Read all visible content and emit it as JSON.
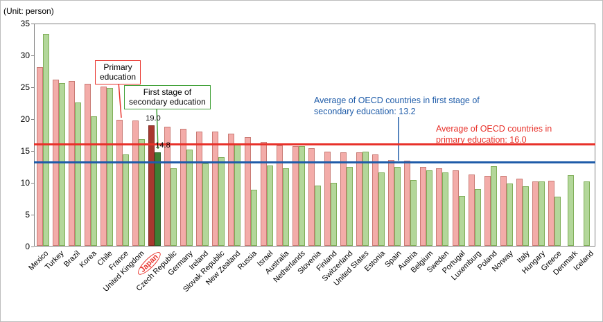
{
  "annotations": {
    "unit": "(Unit: person)",
    "primary_box": {
      "line1": "Primary",
      "line2": "education"
    },
    "secondary_box": {
      "line1": "First stage of",
      "line2": "secondary education"
    },
    "avg_secondary": {
      "line1": "Average of OECD countries in first stage of",
      "line2": "secondary education: 13.2"
    },
    "avg_primary": {
      "line1": "Average of OECD countries in",
      "line2": "primary education: 16.0"
    },
    "japan_primary": "19.0",
    "japan_secondary": "14.8"
  },
  "colors": {
    "primary_bar": "#F3ACA9",
    "secondary_bar": "#B3D79A",
    "japan_primary_bar": "#A8382F",
    "japan_secondary_bar": "#3E7F35",
    "primary_avg_line": "#E8312A",
    "secondary_avg_line": "#1F5CA9"
  },
  "chart_data": {
    "type": "bar",
    "title": "",
    "unit": "person",
    "ylabel": "(Unit: person)",
    "ylim": [
      0,
      35
    ],
    "yticks": [
      0,
      5,
      10,
      15,
      20,
      25,
      30,
      35
    ],
    "grid": false,
    "highlight_category": "Japan",
    "categories": [
      "Mexico",
      "Turkey",
      "Brazil",
      "Korea",
      "Chile",
      "France",
      "United Kingdom",
      "Japan",
      "Czech Republic",
      "Germany",
      "Ireland",
      "Slovak Republic",
      "New Zealand",
      "Russia",
      "Israel",
      "Australia",
      "Netherlands",
      "Slovenia",
      "Finland",
      "Switzerland",
      "United States",
      "Estonia",
      "Spain",
      "Austria",
      "Belgium",
      "Sweden",
      "Portugal",
      "Luxemburg",
      "Poland",
      "Norway",
      "Italy",
      "Hungary",
      "Greece",
      "Denmark",
      "Iceland"
    ],
    "series": [
      {
        "name": "Primary education",
        "values": [
          28.2,
          26.3,
          26.0,
          25.6,
          25.2,
          19.9,
          19.8,
          19.0,
          18.8,
          18.5,
          18.1,
          18.0,
          17.7,
          17.2,
          16.4,
          15.9,
          15.7,
          15.4,
          14.9,
          14.8,
          14.8,
          14.4,
          13.6,
          13.5,
          12.5,
          12.2,
          11.9,
          11.3,
          11.0,
          11.0,
          10.6,
          10.2,
          10.3,
          null,
          null
        ]
      },
      {
        "name": "First stage of secondary education",
        "values": [
          33.5,
          25.7,
          22.6,
          20.5,
          24.9,
          14.4,
          16.9,
          14.8,
          12.3,
          15.2,
          13.0,
          14.0,
          16.2,
          8.9,
          12.7,
          12.3,
          15.8,
          9.5,
          10.0,
          12.5,
          14.9,
          11.6,
          12.5,
          10.4,
          11.9,
          11.6,
          7.9,
          9.0,
          12.6,
          9.9,
          9.4,
          10.2,
          7.8,
          11.2,
          10.2
        ]
      }
    ],
    "averages": {
      "primary": 16.0,
      "secondary": 13.2
    },
    "data_labels": {
      "Japan": {
        "primary": "19.0",
        "secondary": "14.8"
      }
    }
  }
}
